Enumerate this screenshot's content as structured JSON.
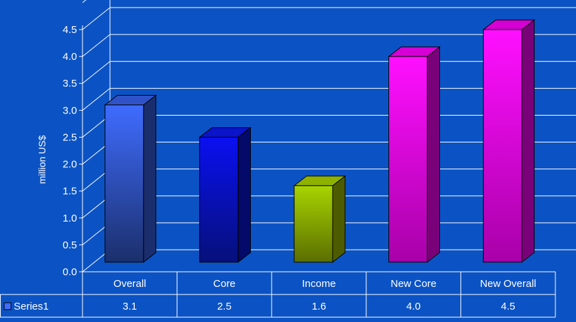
{
  "chart_data": {
    "type": "bar",
    "title": "",
    "xlabel": "",
    "ylabel": "million US$",
    "ylim": [
      0,
      4.5
    ],
    "yticks": [
      "0.0",
      "0.5",
      "1.0",
      "1.5",
      "2.0",
      "2.5",
      "3.0",
      "3.5",
      "4.0",
      "4.5"
    ],
    "grid": true,
    "three_d": true,
    "categories": [
      "Overall",
      "Core",
      "Income",
      "New Core",
      "New Overall"
    ],
    "series": [
      {
        "name": "Series1",
        "values": [
          3.1,
          2.5,
          1.6,
          4.0,
          4.5
        ],
        "value_labels": [
          "3.1",
          "2.5",
          "1.6",
          "4.0",
          "4.5"
        ]
      }
    ],
    "bar_colors": [
      {
        "front_top": "#3f6cff",
        "front_bottom": "#1b2f6b",
        "side": "#1a2e6e",
        "top": "#2f52c8"
      },
      {
        "front_top": "#0a10f0",
        "front_bottom": "#06107a",
        "side": "#040a6a",
        "top": "#0a14c8"
      },
      {
        "front_top": "#a8d400",
        "front_bottom": "#5a6e00",
        "side": "#4e5c00",
        "top": "#8fb200"
      },
      {
        "front_top": "#ff10ff",
        "front_bottom": "#a800a8",
        "side": "#7a007a",
        "top": "#d400d4"
      },
      {
        "front_top": "#ff10ff",
        "front_bottom": "#a800a8",
        "side": "#7a007a",
        "top": "#d400d4"
      }
    ],
    "data_table": true,
    "legend_in_table": true
  }
}
